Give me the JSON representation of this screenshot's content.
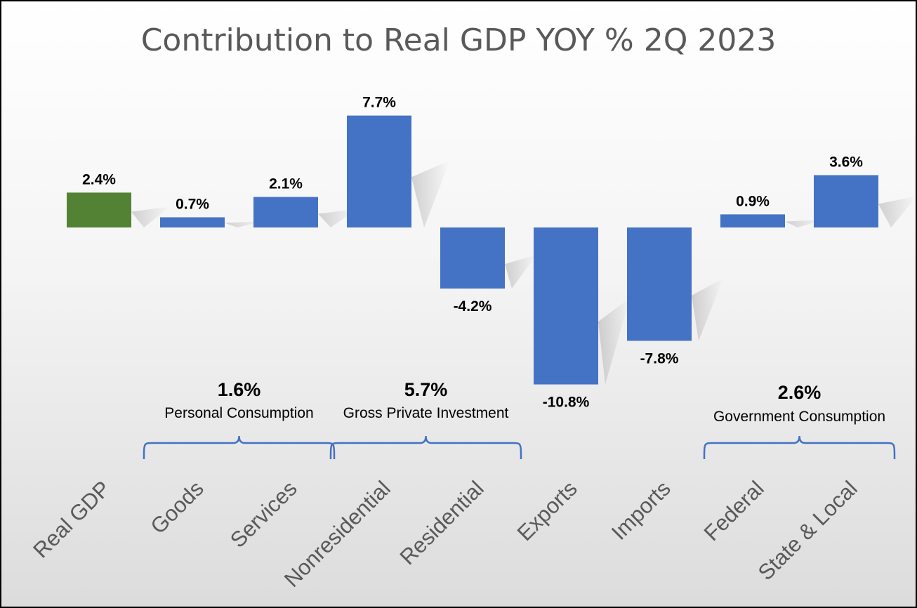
{
  "chart_data": {
    "type": "bar",
    "title": "Contribution to Real GDP YOY % 2Q 2023",
    "categories": [
      "Real GDP",
      "Goods",
      "Services",
      "Nonresidential",
      "Residential",
      "Exports",
      "Imports",
      "Federal",
      "State & Local"
    ],
    "values": [
      2.4,
      0.7,
      2.1,
      7.7,
      -4.2,
      -10.8,
      -7.8,
      0.9,
      3.6
    ],
    "data_labels": [
      "2.4%",
      "0.7%",
      "2.1%",
      "7.7%",
      "-4.2%",
      "-10.8%",
      "-7.8%",
      "0.9%",
      "3.6%"
    ],
    "bar_colors": [
      "#548235",
      "#4472C4",
      "#4472C4",
      "#4472C4",
      "#4472C4",
      "#4472C4",
      "#4472C4",
      "#4472C4",
      "#4472C4"
    ],
    "groups": [
      {
        "value_label": "1.6%",
        "name": "Personal Consumption",
        "categories": [
          "Goods",
          "Services"
        ]
      },
      {
        "value_label": "5.7%",
        "name": "Gross Private Investment",
        "categories": [
          "Nonresidential",
          "Residential"
        ]
      },
      {
        "value_label": "2.6%",
        "name": "Government Consumption",
        "categories": [
          "Federal",
          "State & Local"
        ]
      }
    ],
    "xlabel": "",
    "ylabel": "",
    "grid": false,
    "legend": "none"
  },
  "colors": {
    "title": "#595959",
    "category_label": "#595959",
    "bracket": "#4472C4",
    "positive_bar": "#548235",
    "bar": "#4472C4"
  }
}
